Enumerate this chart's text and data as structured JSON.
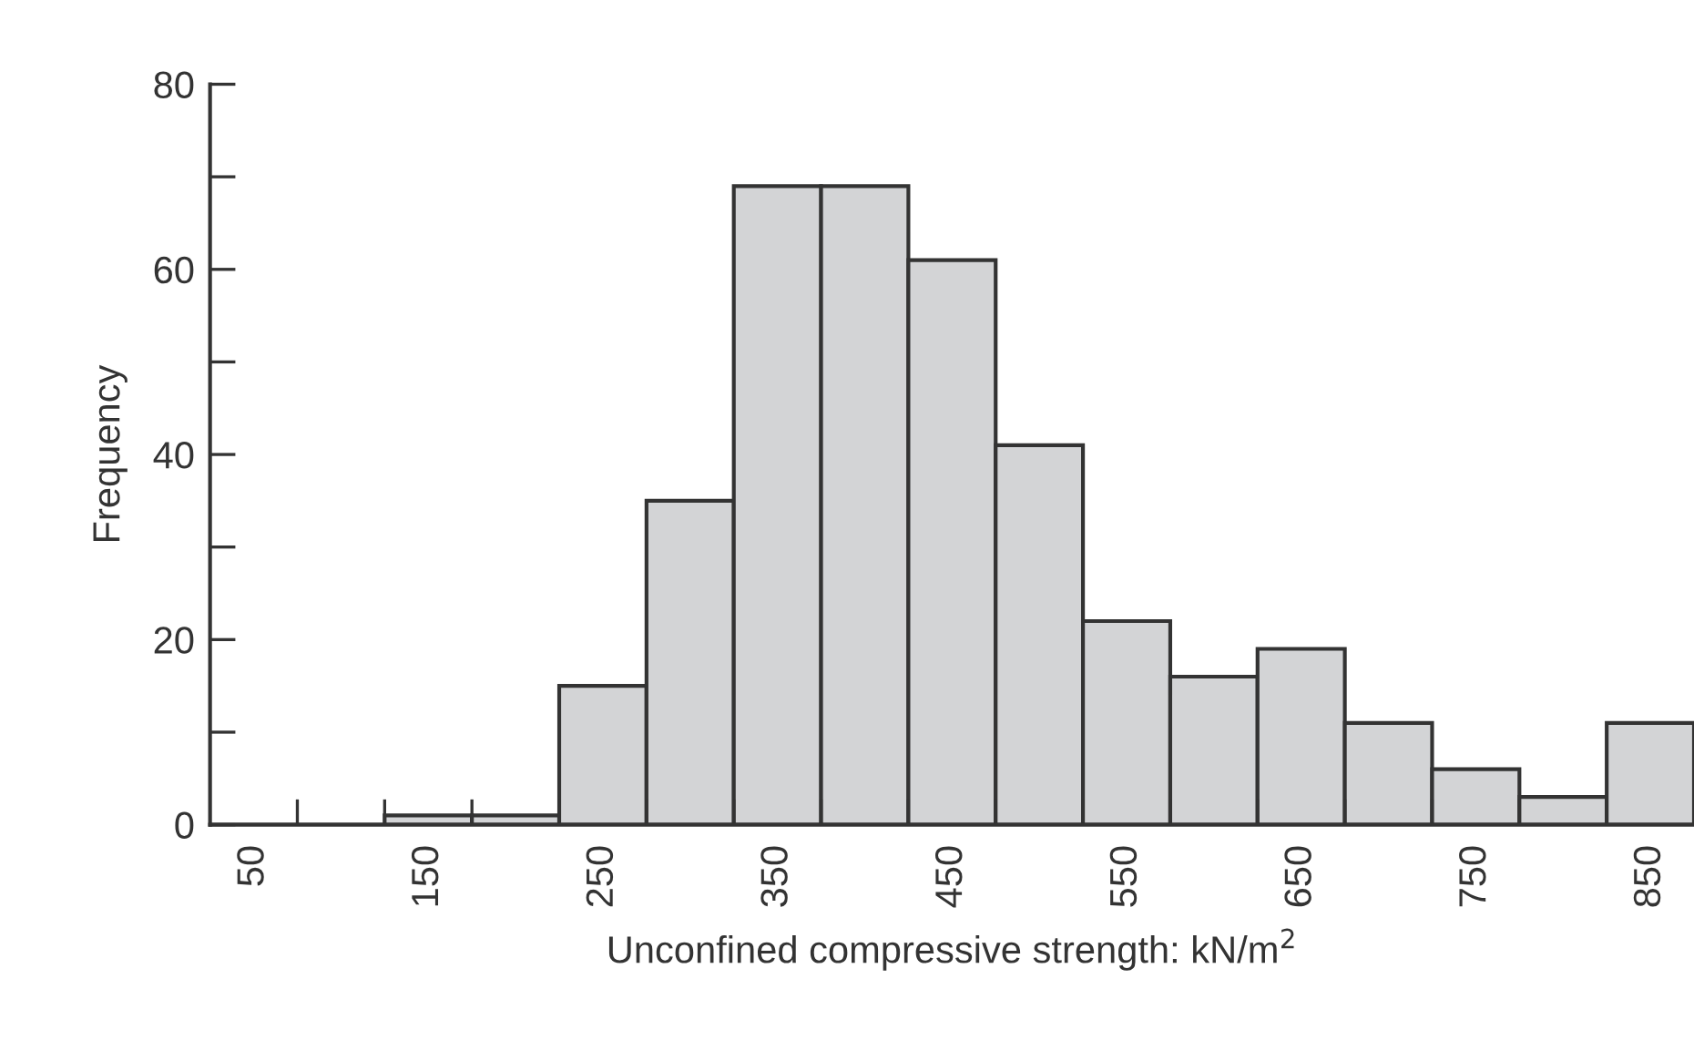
{
  "chart_data": {
    "type": "histogram",
    "xlabel": "Unconfined compressive strength: kN/m$^{2}$",
    "ylabel": "Frequency",
    "bins": [
      25,
      75,
      125,
      175,
      225,
      275,
      325,
      375,
      425,
      475,
      525,
      575,
      625,
      675,
      725,
      775,
      825,
      875
    ],
    "values": [
      0,
      0,
      1,
      1,
      15,
      35,
      69,
      69,
      61,
      41,
      22,
      16,
      19,
      11,
      6,
      3,
      11
    ],
    "color": "#d3d4d6",
    "xlim": [
      25,
      875
    ],
    "ylim": [
      0,
      80
    ],
    "xticks": [
      50,
      {
        "value": 75,
        "label": null
      },
      {
        "value": 125,
        "label": null
      },
      150,
      {
        "value": 175,
        "label": null
      },
      {
        "value": 225,
        "label": null
      },
      250,
      {
        "value": 275,
        "label": null
      },
      {
        "value": 325,
        "label": null
      },
      350,
      {
        "value": 375,
        "label": null
      },
      {
        "value": 425,
        "label": null
      },
      450,
      {
        "value": 475,
        "label": null
      },
      {
        "value": 525,
        "label": null
      },
      550,
      {
        "value": 575,
        "label": null
      },
      {
        "value": 625,
        "label": null
      },
      650,
      {
        "value": 675,
        "label": null
      },
      {
        "value": 725,
        "label": null
      },
      750,
      {
        "value": 775,
        "label": null
      },
      {
        "value": 825,
        "label": null
      },
      850
    ],
    "yticks": [
      0,
      {
        "value": 10,
        "label": null
      },
      20,
      {
        "value": 30,
        "label": null
      },
      40,
      {
        "value": 50,
        "label": null
      },
      60,
      {
        "value": 70,
        "label": null
      },
      80
    ],
    "grid": false
  }
}
